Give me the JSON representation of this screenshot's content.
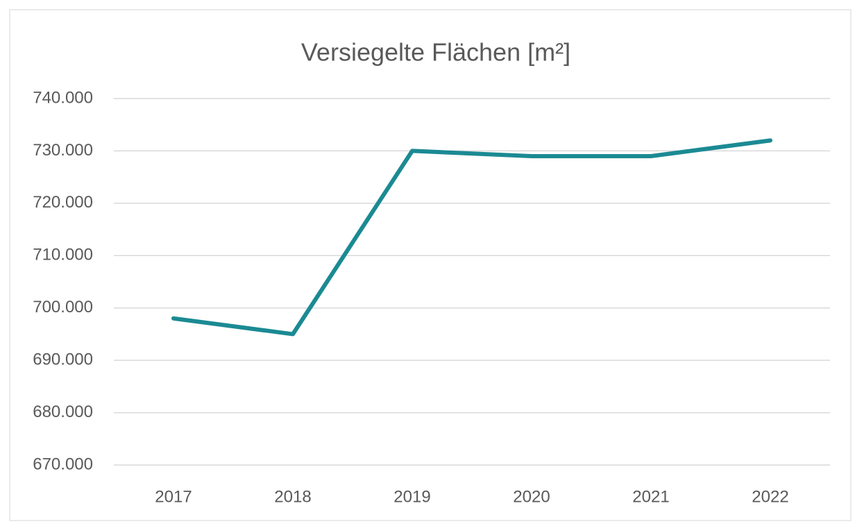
{
  "chart_data": {
    "type": "line",
    "title": "Versiegelte Flächen [m²]",
    "categories": [
      "2017",
      "2018",
      "2019",
      "2020",
      "2021",
      "2022"
    ],
    "values": [
      698000,
      695000,
      730000,
      729000,
      729000,
      732000
    ],
    "color": "#1b8a93",
    "ylim": [
      670000,
      740000
    ],
    "yticks": [
      {
        "value": 670000,
        "label": "670.000"
      },
      {
        "value": 680000,
        "label": "680.000"
      },
      {
        "value": 690000,
        "label": "690.000"
      },
      {
        "value": 700000,
        "label": "700.000"
      },
      {
        "value": 710000,
        "label": "710.000"
      },
      {
        "value": 720000,
        "label": "720.000"
      },
      {
        "value": 730000,
        "label": "730.000"
      },
      {
        "value": 740000,
        "label": "740.000"
      }
    ],
    "grid": true
  }
}
